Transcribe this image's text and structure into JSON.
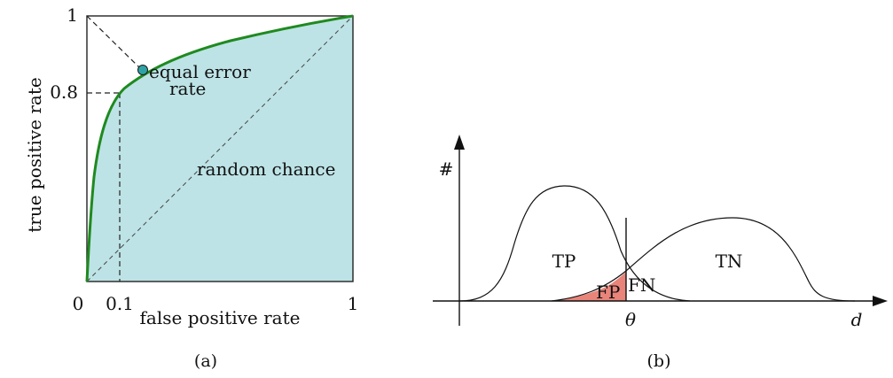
{
  "roc": {
    "y_ticks": {
      "top": "1",
      "mid": "0.8"
    },
    "x_ticks": {
      "zero": "0",
      "mid": "0.1",
      "right": "1"
    },
    "y_label": "true positive rate",
    "x_label": "false positive rate",
    "eer_line1": "equal error",
    "eer_line2": "rate",
    "random_label": "random chance",
    "caption": "(a)",
    "colors": {
      "fill": "#bde3e6",
      "curve": "#1f8a1f",
      "point": "#2ea3a6"
    }
  },
  "dist": {
    "y_axis_label": "#",
    "x_axis_label": "d",
    "threshold_label": "θ",
    "tp_label": "TP",
    "tn_label": "TN",
    "fp_label": "FP",
    "fn_label": "FN",
    "caption": "(b)",
    "colors": {
      "fp_fill": "#e8847a"
    }
  }
}
